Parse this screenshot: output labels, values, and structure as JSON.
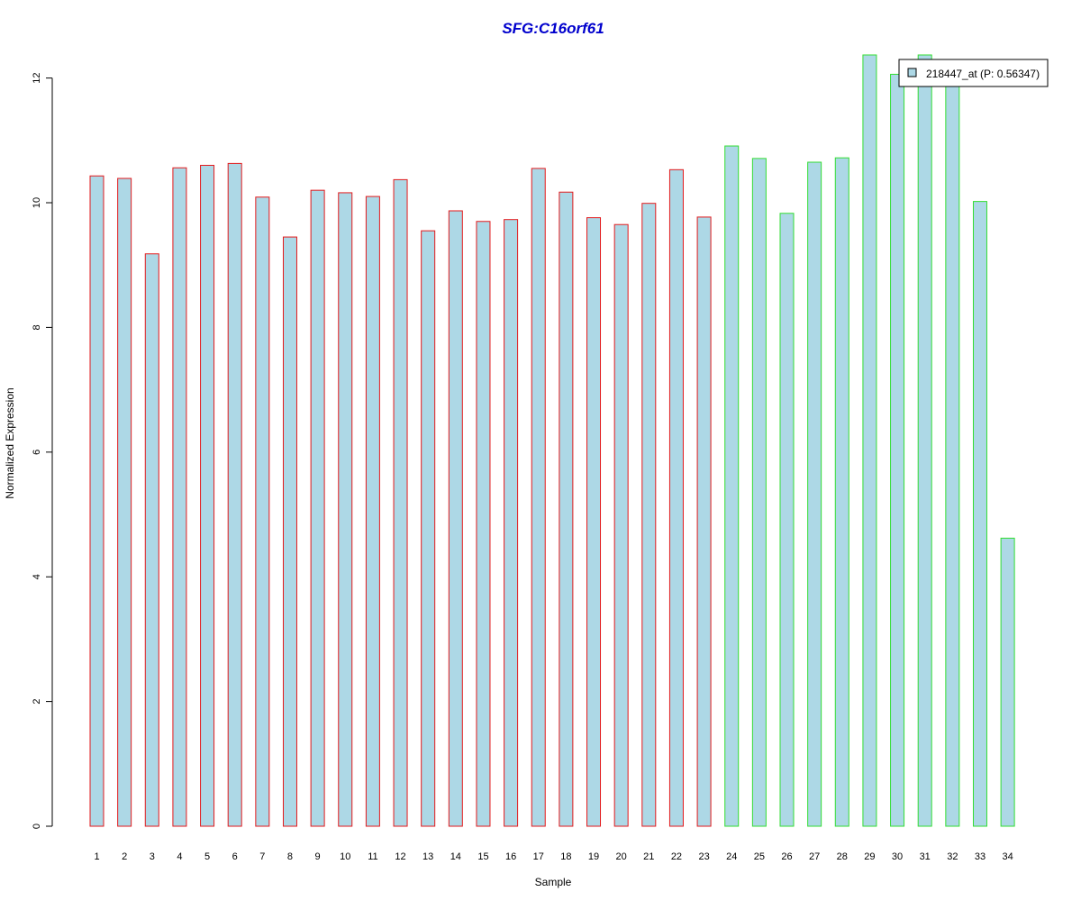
{
  "chart_data": {
    "type": "bar",
    "title": "SFG:C16orf61",
    "xlabel": "Sample",
    "ylabel": "Normalized Expression",
    "ylim": [
      0,
      12.3
    ],
    "yticks": [
      0,
      2,
      4,
      6,
      8,
      10,
      12
    ],
    "categories": [
      "1",
      "2",
      "3",
      "4",
      "5",
      "6",
      "7",
      "8",
      "9",
      "10",
      "11",
      "12",
      "13",
      "14",
      "15",
      "16",
      "17",
      "18",
      "19",
      "20",
      "21",
      "22",
      "23",
      "24",
      "25",
      "26",
      "27",
      "28",
      "29",
      "30",
      "31",
      "32",
      "33",
      "34"
    ],
    "series": [
      {
        "name": "218447_at (P: 0.56347)",
        "fill": "#add8e6",
        "values": [
          10.43,
          10.39,
          9.18,
          10.56,
          10.6,
          10.63,
          10.09,
          9.45,
          10.2,
          10.16,
          10.1,
          10.37,
          9.55,
          9.87,
          9.7,
          9.73,
          10.55,
          10.17,
          9.76,
          9.65,
          9.99,
          10.53,
          9.77,
          10.91,
          10.71,
          9.83,
          10.65,
          10.72,
          12.37,
          12.06,
          12.37,
          12.01,
          10.02,
          4.62
        ]
      }
    ],
    "border_colors": [
      "#e31a1c",
      "#e31a1c",
      "#e31a1c",
      "#e31a1c",
      "#e31a1c",
      "#e31a1c",
      "#e31a1c",
      "#e31a1c",
      "#e31a1c",
      "#e31a1c",
      "#e31a1c",
      "#e31a1c",
      "#e31a1c",
      "#e31a1c",
      "#e31a1c",
      "#e31a1c",
      "#e31a1c",
      "#e31a1c",
      "#e31a1c",
      "#e31a1c",
      "#e31a1c",
      "#e31a1c",
      "#e31a1c",
      "#33dd33",
      "#33dd33",
      "#33dd33",
      "#33dd33",
      "#33dd33",
      "#33dd33",
      "#33dd33",
      "#33dd33",
      "#33dd33",
      "#33dd33",
      "#33dd33"
    ],
    "legend": {
      "label": "218447_at (P: 0.56347)",
      "placement": "top-right",
      "swatch_fill": "#add8e6"
    },
    "grid": false
  }
}
